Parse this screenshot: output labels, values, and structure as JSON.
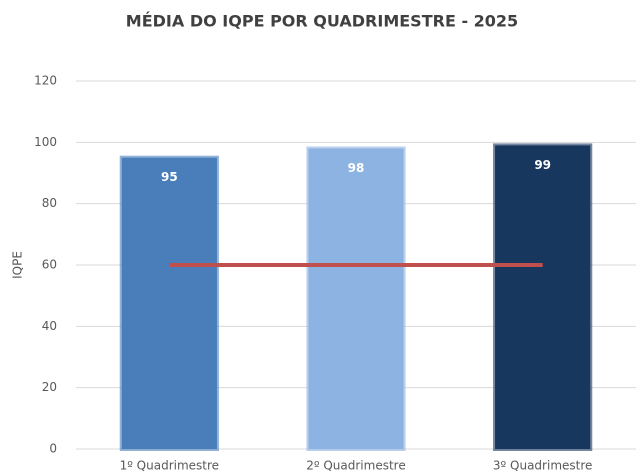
{
  "chart_data": {
    "type": "bar",
    "title": "MÉDIA DO IQPE POR QUADRIMESTRE - 2025",
    "y_label": "IQPE",
    "categories": [
      "1º Quadrimestre",
      "2º Quadrimestre",
      "3º Quadrimestre"
    ],
    "series": [
      {
        "colors": [
          "#4a7ebb",
          "#8db3e2",
          "#17375e"
        ],
        "values": [
          95,
          98,
          99
        ]
      },
      {
        "type": "line",
        "color": "#c0504d",
        "values": [
          60,
          60,
          60
        ]
      }
    ],
    "ylim": [
      0,
      120
    ],
    "yticks": [
      0,
      20,
      40,
      60,
      80,
      100,
      120
    ],
    "grid": true
  }
}
